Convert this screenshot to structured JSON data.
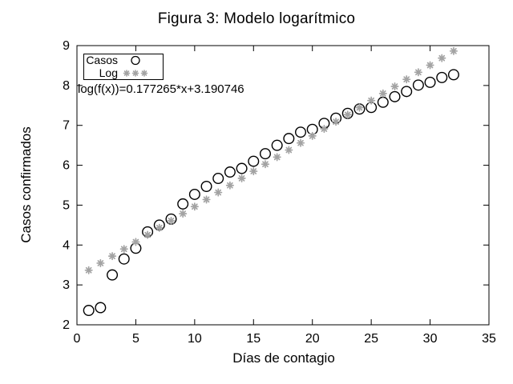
{
  "chart_data": {
    "type": "scatter",
    "title": "Figura 3: Modelo logarítmico",
    "xlabel": "Días de contagio",
    "ylabel": "Casos confirmados",
    "xlim": [
      0,
      35
    ],
    "ylim": [
      2,
      9
    ],
    "x_ticks": [
      0,
      5,
      10,
      15,
      20,
      25,
      30,
      35
    ],
    "y_ticks": [
      2,
      3,
      4,
      5,
      6,
      7,
      8,
      9
    ],
    "grid": false,
    "legend_position": "top-left",
    "annotation": "log(f(x))=0.177265*x+3.190746",
    "series": [
      {
        "name": "Casos",
        "marker": "open-circle",
        "color": "#000000",
        "x": [
          1,
          2,
          3,
          4,
          5,
          6,
          7,
          8,
          9,
          10,
          11,
          12,
          13,
          14,
          15,
          16,
          17,
          18,
          19,
          20,
          21,
          22,
          23,
          24,
          25,
          26,
          27,
          28,
          29,
          30,
          31,
          32
        ],
        "y": [
          2.36,
          2.43,
          3.25,
          3.65,
          3.92,
          4.33,
          4.5,
          4.65,
          5.03,
          5.27,
          5.47,
          5.67,
          5.83,
          5.92,
          6.1,
          6.29,
          6.5,
          6.67,
          6.83,
          6.9,
          7.05,
          7.18,
          7.3,
          7.41,
          7.45,
          7.58,
          7.72,
          7.85,
          8.01,
          8.08,
          8.2,
          8.27
        ]
      },
      {
        "name": "Log",
        "marker": "asterisk",
        "color": "#a3a3a3",
        "x": [
          1,
          2,
          3,
          4,
          5,
          6,
          7,
          8,
          9,
          10,
          11,
          12,
          13,
          14,
          15,
          16,
          17,
          18,
          19,
          20,
          21,
          22,
          23,
          24,
          25,
          26,
          27,
          28,
          29,
          30,
          31,
          32
        ],
        "fit": {
          "slope": 0.177265,
          "intercept": 3.190746
        }
      }
    ],
    "colors": {
      "foreground": "#000000",
      "background": "#ffffff"
    }
  }
}
